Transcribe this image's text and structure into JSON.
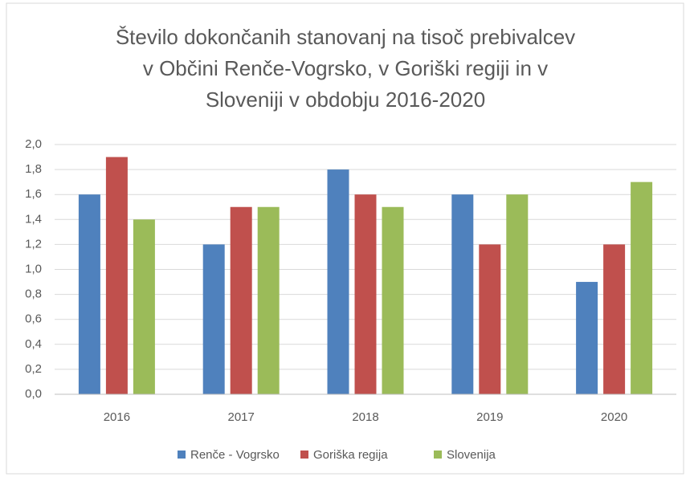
{
  "chart_data": {
    "type": "bar",
    "title": [
      "Število dokončanih stanovanj na tisoč prebivalcev",
      "v Občini Renče-Vogrsko, v Goriški regiji in v",
      "Sloveniji v obdobju 2016-2020"
    ],
    "categories": [
      "2016",
      "2017",
      "2018",
      "2019",
      "2020"
    ],
    "series": [
      {
        "name": "Renče - Vogrsko",
        "color": "#4f81bd",
        "values": [
          1.6,
          1.2,
          1.8,
          1.6,
          0.9
        ]
      },
      {
        "name": "Goriška regija",
        "color": "#c0504d",
        "values": [
          1.9,
          1.5,
          1.6,
          1.2,
          1.2
        ]
      },
      {
        "name": "Slovenija",
        "color": "#9bbb59",
        "values": [
          1.4,
          1.5,
          1.5,
          1.6,
          1.7
        ]
      }
    ],
    "ylim": [
      0,
      2
    ],
    "yticks": [
      {
        "value": 0,
        "label": "0,0"
      },
      {
        "value": 0.2,
        "label": "0,2"
      },
      {
        "value": 0.4,
        "label": "0,4"
      },
      {
        "value": 0.6,
        "label": "0,6"
      },
      {
        "value": 0.8,
        "label": "0,8"
      },
      {
        "value": 1,
        "label": "1,0"
      },
      {
        "value": 1.2,
        "label": "1,2"
      },
      {
        "value": 1.4,
        "label": "1,4"
      },
      {
        "value": 1.6,
        "label": "1,6"
      },
      {
        "value": 1.8,
        "label": "1,8"
      },
      {
        "value": 2,
        "label": "2,0"
      }
    ],
    "grid": true,
    "legend": "bottom"
  }
}
